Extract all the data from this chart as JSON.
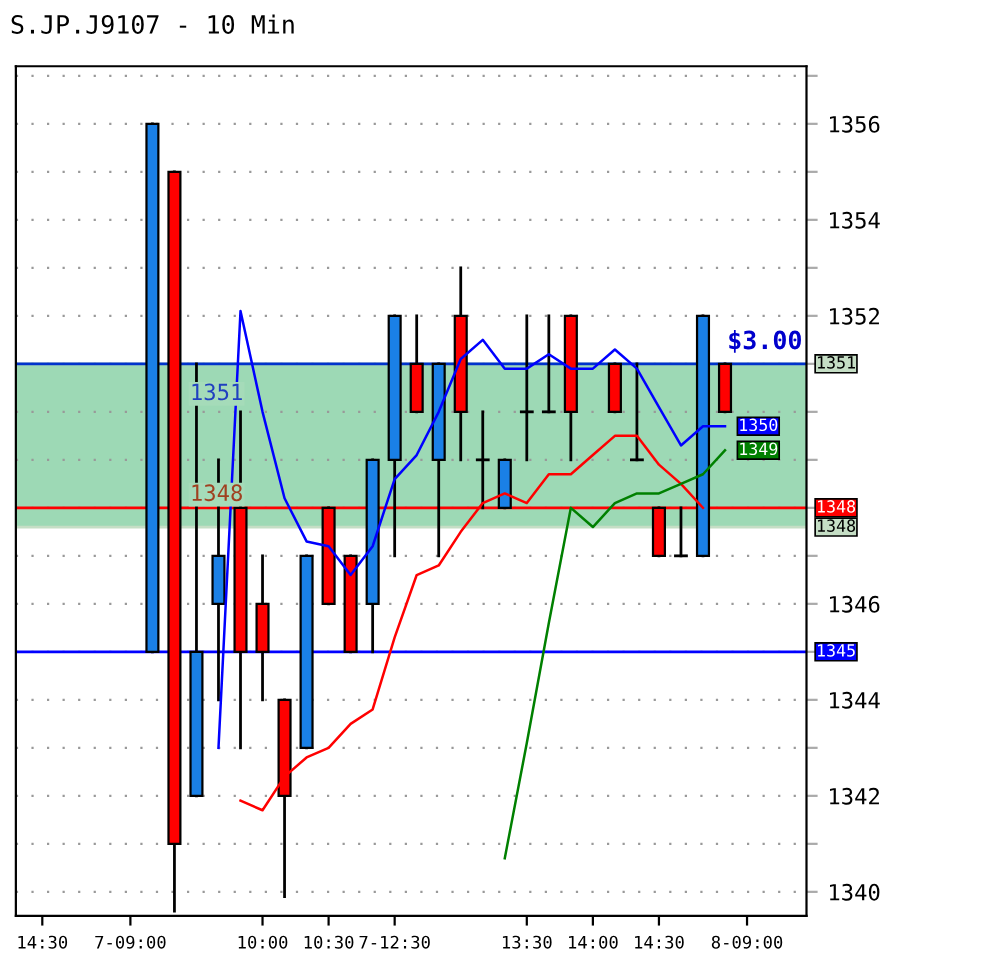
{
  "chart_data": {
    "type": "candlestick",
    "title": "S.JP.J9107 - 10 Min",
    "categories": [
      "14:30",
      null,
      null,
      null,
      "7-09:00",
      null,
      null,
      null,
      null,
      null,
      "10:00",
      null,
      null,
      "10:30",
      null,
      null,
      "7-12:30",
      null,
      null,
      null,
      null,
      null,
      "13:30",
      null,
      null,
      "14:00",
      null,
      null,
      "14:30",
      null,
      null,
      null,
      "8-09:00"
    ],
    "ohlc": [
      null,
      null,
      null,
      null,
      null,
      [
        1345,
        1356,
        1345,
        1356
      ],
      [
        1355,
        1355,
        1339.6,
        1341
      ],
      [
        1342,
        1351,
        1342,
        1345
      ],
      [
        1346,
        1349,
        1344,
        1347
      ],
      [
        1348,
        1350,
        1343,
        1345
      ],
      [
        1346,
        1347,
        1344,
        1345
      ],
      [
        1344,
        1344,
        1339.9,
        1342
      ],
      [
        1343,
        1347,
        1343,
        1347
      ],
      [
        1348,
        1348,
        1346,
        1346
      ],
      [
        1347,
        1347,
        1345,
        1345
      ],
      [
        1346,
        1349,
        1345,
        1349
      ],
      [
        1349,
        1352,
        1347,
        1352
      ],
      [
        1351,
        1352,
        1350,
        1350
      ],
      [
        1349,
        1351,
        1347,
        1351
      ],
      [
        1352,
        1353,
        1349,
        1350
      ],
      [
        1349,
        1350,
        1348,
        1349
      ],
      [
        1348,
        1349,
        1348,
        1349
      ],
      [
        1350,
        1352,
        1349,
        1350
      ],
      [
        1350,
        1352,
        1350,
        1350
      ],
      [
        1352,
        1352,
        1349,
        1350
      ],
      null,
      [
        1351,
        1351,
        1350,
        1350
      ],
      [
        1349,
        1351,
        1349,
        1349
      ],
      [
        1348,
        1348,
        1347,
        1347
      ],
      [
        1347,
        1348,
        1347,
        1347
      ],
      [
        1347,
        1352,
        1347,
        1352
      ],
      [
        1351,
        1351,
        1350,
        1350
      ],
      null
    ],
    "colors": [
      null,
      null,
      null,
      null,
      null,
      "#1a80e6",
      "#ff0000",
      "#1a80e6",
      "#1a80e6",
      "#ff0000",
      "#ff0000",
      "#ff0000",
      "#1a80e6",
      "#ff0000",
      "#ff0000",
      "#1a80e6",
      "#1a80e6",
      "#ff0000",
      "#1a80e6",
      "#ff0000",
      "#000000",
      "#1a80e6",
      "#000000",
      "#000000",
      "#ff0000",
      null,
      "#ff0000",
      "#000000",
      "#ff0000",
      "#000000",
      "#1a80e6",
      "#ff0000",
      null
    ],
    "series": [
      {
        "type": "line",
        "color": "#0000ff",
        "values": [
          null,
          null,
          null,
          null,
          null,
          null,
          null,
          null,
          1343,
          1352.1,
          1350,
          1348.2,
          1347.3,
          1347.2,
          1346.6,
          1347.2,
          1348.6,
          1349.1,
          1350,
          1351.1,
          1351.5,
          1350.9,
          1350.9,
          1351.2,
          1350.9,
          1350.9,
          1351.3,
          1350.9,
          1350.1,
          1349.3,
          1349.7,
          1349.7,
          null
        ],
        "value_labels": [
          null,
          null,
          null,
          null,
          null,
          null,
          null,
          null,
          null,
          null,
          null,
          null,
          null,
          null,
          null,
          null,
          null,
          null,
          null,
          null,
          null,
          null,
          null,
          null,
          null,
          null,
          null,
          null,
          null,
          null,
          null,
          "1350",
          null
        ]
      },
      {
        "type": "line",
        "color": "#ff0000",
        "values": [
          null,
          null,
          null,
          null,
          null,
          null,
          null,
          null,
          null,
          1341.9,
          1341.7,
          1342.4,
          1342.8,
          1343,
          1343.5,
          1343.8,
          1345.3,
          1346.6,
          1346.8,
          1347.5,
          1348.1,
          1348.3,
          1348.1,
          1348.7,
          1348.7,
          1349.1,
          1349.5,
          1349.5,
          1348.9,
          1348.5,
          1348,
          null,
          null
        ]
      },
      {
        "type": "line",
        "color": "#008000",
        "values": [
          null,
          null,
          null,
          null,
          null,
          null,
          null,
          null,
          null,
          null,
          null,
          null,
          null,
          null,
          null,
          null,
          null,
          null,
          null,
          null,
          null,
          1340.7,
          1343.1,
          1345.6,
          1348,
          1347.6,
          1348.1,
          1348.3,
          1348.3,
          1348.5,
          1348.7,
          1349.2,
          null
        ],
        "value_labels": [
          null,
          null,
          null,
          null,
          null,
          null,
          null,
          null,
          null,
          null,
          null,
          null,
          null,
          null,
          null,
          null,
          null,
          null,
          null,
          null,
          null,
          null,
          null,
          null,
          null,
          null,
          null,
          null,
          null,
          null,
          null,
          "1349",
          null
        ]
      }
    ],
    "bands": [
      {
        "axis": "y",
        "from": 1347.6,
        "to": 1351,
        "color": "#5cbf84"
      }
    ],
    "ref_lines": [
      {
        "axis": "y",
        "value": 1351,
        "label": "1351",
        "color": "#c5dec5"
      },
      {
        "axis": "y",
        "value": 1347.6,
        "label": "1348",
        "color": "#c5dec5"
      },
      {
        "axis": "y",
        "value": 1351,
        "label": null,
        "color": "#0033cc"
      },
      {
        "axis": "y",
        "value": 1348,
        "label": "1348",
        "color": "#ff0000"
      },
      {
        "axis": "y",
        "value": 1345,
        "label": "1345",
        "color": "#0000ff"
      }
    ],
    "annotations": [
      "$3.00",
      "1351",
      "1348"
    ],
    "ylim": [
      1339.5,
      1357.2
    ],
    "yticks": [
      1340,
      {
        "value": 1341,
        "label": null
      },
      1342,
      {
        "value": 1343,
        "label": null
      },
      1344,
      {
        "value": 1345,
        "label": null
      },
      1346,
      {
        "value": 1347,
        "label": null
      },
      {
        "value": 1348,
        "label": null
      },
      {
        "value": 1349,
        "label": null
      },
      {
        "value": 1350,
        "label": null
      },
      {
        "value": 1351,
        "label": null
      },
      1352,
      {
        "value": 1353,
        "label": null
      },
      1354,
      {
        "value": 1355,
        "label": null
      },
      1356,
      {
        "value": 1357,
        "label": null
      }
    ],
    "grid": "y",
    "line_style": "solid"
  }
}
